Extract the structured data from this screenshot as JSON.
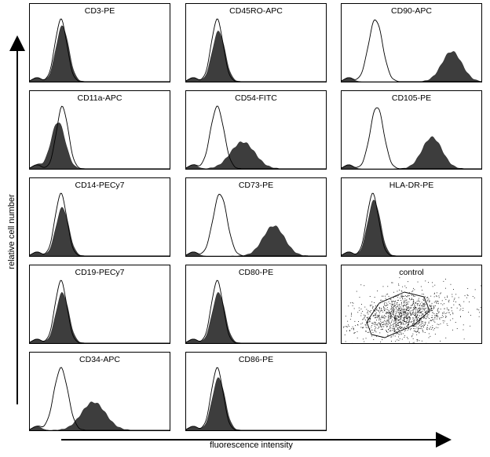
{
  "figure": {
    "y_axis_label": "relative cell number",
    "x_axis_label": "fluorescence intensity"
  },
  "chart_data": [
    {
      "type": "area",
      "title": "CD3-PE",
      "series": [
        {
          "role": "isotype control",
          "style": "open line",
          "peak_x": 0.22,
          "width": 0.042,
          "peak_y": 0.93
        },
        {
          "role": "stained",
          "style": "filled dark gray",
          "peak_x": 0.23,
          "width": 0.045,
          "peak_y": 0.83
        }
      ]
    },
    {
      "type": "area",
      "title": "CD45RO-APC",
      "series": [
        {
          "role": "isotype control",
          "style": "open line",
          "peak_x": 0.22,
          "width": 0.042,
          "peak_y": 0.93
        },
        {
          "role": "stained",
          "style": "filled dark gray",
          "peak_x": 0.23,
          "width": 0.045,
          "peak_y": 0.75
        }
      ]
    },
    {
      "type": "area",
      "title": "CD90-APC",
      "series": [
        {
          "role": "isotype control",
          "style": "open line",
          "peak_x": 0.24,
          "width": 0.05,
          "peak_y": 0.93
        },
        {
          "role": "stained",
          "style": "filled dark gray",
          "peak_x": 0.78,
          "width": 0.07,
          "peak_y": 0.45
        }
      ]
    },
    {
      "type": "area",
      "title": "CD11a-APC",
      "series": [
        {
          "role": "isotype control",
          "style": "open line",
          "peak_x": 0.23,
          "width": 0.042,
          "peak_y": 0.93
        },
        {
          "role": "stained",
          "style": "filled dark gray",
          "peak_x": 0.2,
          "width": 0.05,
          "peak_y": 0.7
        }
      ]
    },
    {
      "type": "area",
      "title": "CD54-FITC",
      "series": [
        {
          "role": "isotype control",
          "style": "open line",
          "peak_x": 0.22,
          "width": 0.048,
          "peak_y": 0.93
        },
        {
          "role": "stained",
          "style": "filled dark gray",
          "peak_x": 0.4,
          "width": 0.085,
          "peak_y": 0.4
        }
      ]
    },
    {
      "type": "area",
      "title": "CD105-PE",
      "series": [
        {
          "role": "isotype control",
          "style": "open line",
          "peak_x": 0.25,
          "width": 0.048,
          "peak_y": 0.93
        },
        {
          "role": "stained",
          "style": "filled dark gray",
          "peak_x": 0.64,
          "width": 0.07,
          "peak_y": 0.47
        }
      ]
    },
    {
      "type": "area",
      "title": "CD14-PECy7",
      "series": [
        {
          "role": "isotype control",
          "style": "open line",
          "peak_x": 0.22,
          "width": 0.042,
          "peak_y": 0.93
        },
        {
          "role": "stained",
          "style": "filled dark gray",
          "peak_x": 0.23,
          "width": 0.045,
          "peak_y": 0.72
        }
      ]
    },
    {
      "type": "area",
      "title": "CD73-PE",
      "series": [
        {
          "role": "isotype control",
          "style": "open line",
          "peak_x": 0.24,
          "width": 0.05,
          "peak_y": 0.93
        },
        {
          "role": "stained",
          "style": "filled dark gray",
          "peak_x": 0.62,
          "width": 0.075,
          "peak_y": 0.45
        }
      ]
    },
    {
      "type": "area",
      "title": "HLA-DR-PE",
      "series": [
        {
          "role": "isotype control",
          "style": "open line",
          "peak_x": 0.22,
          "width": 0.042,
          "peak_y": 0.93
        },
        {
          "role": "stained",
          "style": "filled dark gray",
          "peak_x": 0.23,
          "width": 0.045,
          "peak_y": 0.83
        }
      ]
    },
    {
      "type": "area",
      "title": "CD19-PECy7",
      "series": [
        {
          "role": "isotype control",
          "style": "open line",
          "peak_x": 0.22,
          "width": 0.042,
          "peak_y": 0.93
        },
        {
          "role": "stained",
          "style": "filled dark gray",
          "peak_x": 0.23,
          "width": 0.045,
          "peak_y": 0.75
        }
      ]
    },
    {
      "type": "area",
      "title": "CD80-PE",
      "series": [
        {
          "role": "isotype control",
          "style": "open line",
          "peak_x": 0.22,
          "width": 0.042,
          "peak_y": 0.93
        },
        {
          "role": "stained",
          "style": "filled dark gray",
          "peak_x": 0.23,
          "width": 0.045,
          "peak_y": 0.75
        }
      ]
    },
    {
      "type": "scatter",
      "title": "control",
      "points": "dot-plot cloud with polygon gate",
      "gate": "polygon around main population"
    },
    {
      "type": "area",
      "title": "CD34-APC",
      "series": [
        {
          "role": "isotype control",
          "style": "open line",
          "peak_x": 0.22,
          "width": 0.05,
          "peak_y": 0.93
        },
        {
          "role": "stained",
          "style": "filled dark gray",
          "peak_x": 0.45,
          "width": 0.085,
          "peak_y": 0.42
        }
      ]
    },
    {
      "type": "area",
      "title": "CD86-PE",
      "series": [
        {
          "role": "isotype control",
          "style": "open line",
          "peak_x": 0.22,
          "width": 0.042,
          "peak_y": 0.93
        },
        {
          "role": "stained",
          "style": "filled dark gray",
          "peak_x": 0.23,
          "width": 0.045,
          "peak_y": 0.78
        }
      ]
    }
  ]
}
